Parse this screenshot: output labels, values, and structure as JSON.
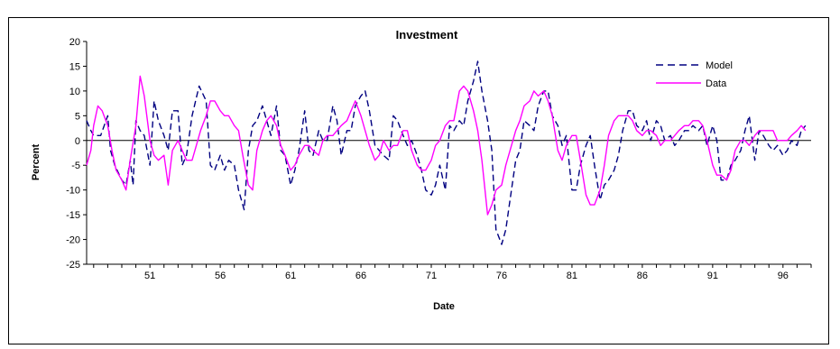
{
  "chart_data": {
    "type": "line",
    "title": "Investment",
    "xlabel": "Date",
    "ylabel": "Percent",
    "ylim": [
      -25,
      20
    ],
    "yticks": [
      "-25",
      "-20",
      "-15",
      "-10",
      "-5",
      "0",
      "5",
      "10",
      "15",
      "20"
    ],
    "xlim": [
      46.5,
      98
    ],
    "xticks": [
      "51",
      "56",
      "61",
      "66",
      "71",
      "76",
      "81",
      "86",
      "91",
      "96"
    ],
    "grid": false,
    "legend_position": "top-right",
    "colors": {
      "Model": "#000080",
      "Data": "#ff00ff",
      "zero_line": "#000000"
    },
    "series": [
      {
        "name": "Model",
        "style": "dashed",
        "x": [
          46.5,
          46.8,
          47.0,
          47.5,
          48.0,
          48.2,
          48.5,
          49.0,
          49.3,
          49.6,
          49.8,
          50.0,
          50.3,
          50.6,
          51.0,
          51.3,
          51.6,
          52.0,
          52.3,
          52.6,
          53.0,
          53.3,
          53.6,
          54.0,
          54.5,
          55.0,
          55.3,
          55.6,
          56.0,
          56.3,
          56.6,
          57.0,
          57.3,
          57.7,
          58.0,
          58.3,
          58.6,
          59.0,
          59.3,
          59.6,
          60.0,
          60.3,
          60.6,
          61.0,
          61.3,
          61.6,
          62.0,
          62.3,
          62.6,
          63.0,
          63.3,
          63.6,
          64.0,
          64.3,
          64.6,
          65.0,
          65.3,
          65.6,
          66.0,
          66.3,
          66.6,
          67.0,
          67.3,
          67.6,
          68.0,
          68.3,
          68.6,
          69.0,
          69.3,
          69.6,
          70.0,
          70.3,
          70.6,
          71.0,
          71.3,
          71.6,
          72.0,
          72.3,
          72.6,
          73.0,
          73.3,
          73.6,
          74.0,
          74.3,
          74.6,
          75.0,
          75.3,
          75.6,
          76.0,
          76.3,
          76.6,
          77.0,
          77.3,
          77.6,
          78.0,
          78.3,
          78.6,
          79.0,
          79.3,
          79.6,
          80.0,
          80.3,
          80.6,
          81.0,
          81.3,
          81.6,
          82.0,
          82.3,
          82.6,
          83.0,
          83.3,
          83.6,
          84.0,
          84.3,
          84.6,
          85.0,
          85.3,
          85.6,
          86.0,
          86.3,
          86.6,
          87.0,
          87.3,
          87.6,
          88.0,
          88.3,
          88.6,
          89.0,
          89.3,
          89.6,
          90.0,
          90.3,
          90.6,
          91.0,
          91.3,
          91.6,
          92.0,
          92.3,
          92.6,
          93.0,
          93.3,
          93.6,
          94.0,
          94.3,
          94.6,
          95.0,
          95.3,
          95.6,
          96.0,
          96.3,
          96.6,
          97.0,
          97.3,
          97.6
        ],
        "values": [
          4,
          2,
          1,
          1,
          5,
          -2,
          -5,
          -8,
          -9,
          -4,
          -9,
          4,
          2,
          1,
          -5,
          8,
          4,
          1,
          -2,
          6,
          6,
          -5,
          -3,
          5,
          11,
          8,
          -5,
          -6,
          -3,
          -6,
          -4,
          -5,
          -10,
          -14,
          -2,
          3,
          4,
          7,
          4,
          1,
          7,
          -2,
          -3,
          -9,
          -6,
          -2,
          6,
          -2,
          -3,
          2,
          0,
          0,
          7,
          4,
          -3,
          2,
          2,
          7,
          9,
          10,
          6,
          -1,
          -2,
          -3,
          -4,
          5,
          4,
          1,
          -1,
          0,
          -3,
          -6,
          -10,
          -11,
          -9,
          -5,
          -10,
          3,
          2,
          4,
          3,
          8,
          12,
          16,
          10,
          4,
          -2,
          -18,
          -21,
          -18,
          -12,
          -4,
          -2,
          4,
          3,
          2,
          7,
          10,
          10,
          5,
          3,
          -1,
          1,
          -10,
          -10,
          -5,
          -1,
          1,
          -5,
          -12,
          -9,
          -8,
          -6,
          -3,
          2,
          6,
          6,
          3,
          2,
          4,
          0,
          4,
          3,
          0,
          1,
          -1,
          0,
          2,
          2,
          3,
          2,
          3,
          -1,
          3,
          0,
          -8,
          -8,
          -5,
          -4,
          -2,
          2,
          5,
          -4,
          2,
          1,
          -1,
          -2,
          -1,
          -3,
          -2,
          0,
          -1,
          2,
          3
        ]
      },
      {
        "name": "Data",
        "style": "solid",
        "x": [
          46.5,
          46.8,
          47.0,
          47.3,
          47.6,
          48.0,
          48.3,
          48.6,
          49.0,
          49.3,
          49.6,
          50.0,
          50.3,
          50.6,
          51.0,
          51.3,
          51.6,
          52.0,
          52.3,
          52.6,
          53.0,
          53.3,
          53.6,
          54.0,
          54.3,
          54.6,
          55.0,
          55.3,
          55.6,
          56.0,
          56.3,
          56.6,
          57.0,
          57.3,
          57.6,
          58.0,
          58.3,
          58.6,
          59.0,
          59.3,
          59.6,
          60.0,
          60.3,
          60.6,
          61.0,
          61.3,
          61.6,
          62.0,
          62.3,
          62.6,
          63.0,
          63.3,
          63.6,
          64.0,
          64.3,
          64.6,
          65.0,
          65.3,
          65.6,
          66.0,
          66.3,
          66.6,
          67.0,
          67.3,
          67.6,
          68.0,
          68.3,
          68.6,
          69.0,
          69.3,
          69.6,
          70.0,
          70.3,
          70.6,
          71.0,
          71.3,
          71.6,
          72.0,
          72.3,
          72.6,
          73.0,
          73.3,
          73.6,
          74.0,
          74.3,
          74.6,
          75.0,
          75.3,
          75.6,
          76.0,
          76.3,
          76.6,
          77.0,
          77.3,
          77.6,
          78.0,
          78.3,
          78.6,
          79.0,
          79.3,
          79.6,
          80.0,
          80.3,
          80.6,
          81.0,
          81.3,
          81.6,
          82.0,
          82.3,
          82.6,
          83.0,
          83.3,
          83.6,
          84.0,
          84.3,
          84.6,
          85.0,
          85.3,
          85.6,
          86.0,
          86.3,
          86.6,
          87.0,
          87.3,
          87.6,
          88.0,
          88.3,
          88.6,
          89.0,
          89.3,
          89.6,
          90.0,
          90.3,
          90.6,
          91.0,
          91.3,
          91.6,
          92.0,
          92.3,
          92.6,
          93.0,
          93.3,
          93.6,
          94.0,
          94.3,
          94.6,
          95.0,
          95.3,
          95.6,
          96.0,
          96.3,
          96.6,
          97.0,
          97.3,
          97.6
        ],
        "values": [
          -5,
          -2,
          3,
          7,
          6,
          3,
          -2,
          -6,
          -8,
          -10,
          -4,
          3,
          13,
          9,
          0,
          -3,
          -4,
          -3,
          -9,
          -2,
          0,
          -2,
          -4,
          -4,
          -1,
          2,
          5,
          8,
          8,
          6,
          5,
          5,
          3,
          2,
          -3,
          -9,
          -10,
          -2,
          2,
          4,
          5,
          3,
          -1,
          -3,
          -6,
          -5,
          -3,
          -1,
          -1,
          -2,
          -3,
          0,
          1,
          1,
          2,
          3,
          4,
          6,
          8,
          5,
          2,
          -1,
          -4,
          -3,
          0,
          -2,
          -1,
          -1,
          2,
          2,
          -2,
          -5,
          -6,
          -6,
          -4,
          -1,
          0,
          3,
          4,
          4,
          10,
          11,
          10,
          6,
          2,
          -4,
          -15,
          -13,
          -10,
          -9,
          -5,
          -2,
          2,
          4,
          7,
          8,
          10,
          9,
          10,
          8,
          5,
          -2,
          -4,
          -1,
          1,
          1,
          -4,
          -11,
          -13,
          -13,
          -10,
          -5,
          1,
          4,
          5,
          5,
          5,
          4,
          2,
          1,
          2,
          2,
          1,
          -1,
          0,
          0,
          1,
          2,
          3,
          3,
          4,
          4,
          3,
          0,
          -5,
          -7,
          -7,
          -8,
          -6,
          -2,
          0,
          0,
          -1,
          1,
          2,
          2,
          2,
          2,
          0,
          0,
          0,
          1,
          2,
          3,
          2
        ]
      }
    ]
  }
}
